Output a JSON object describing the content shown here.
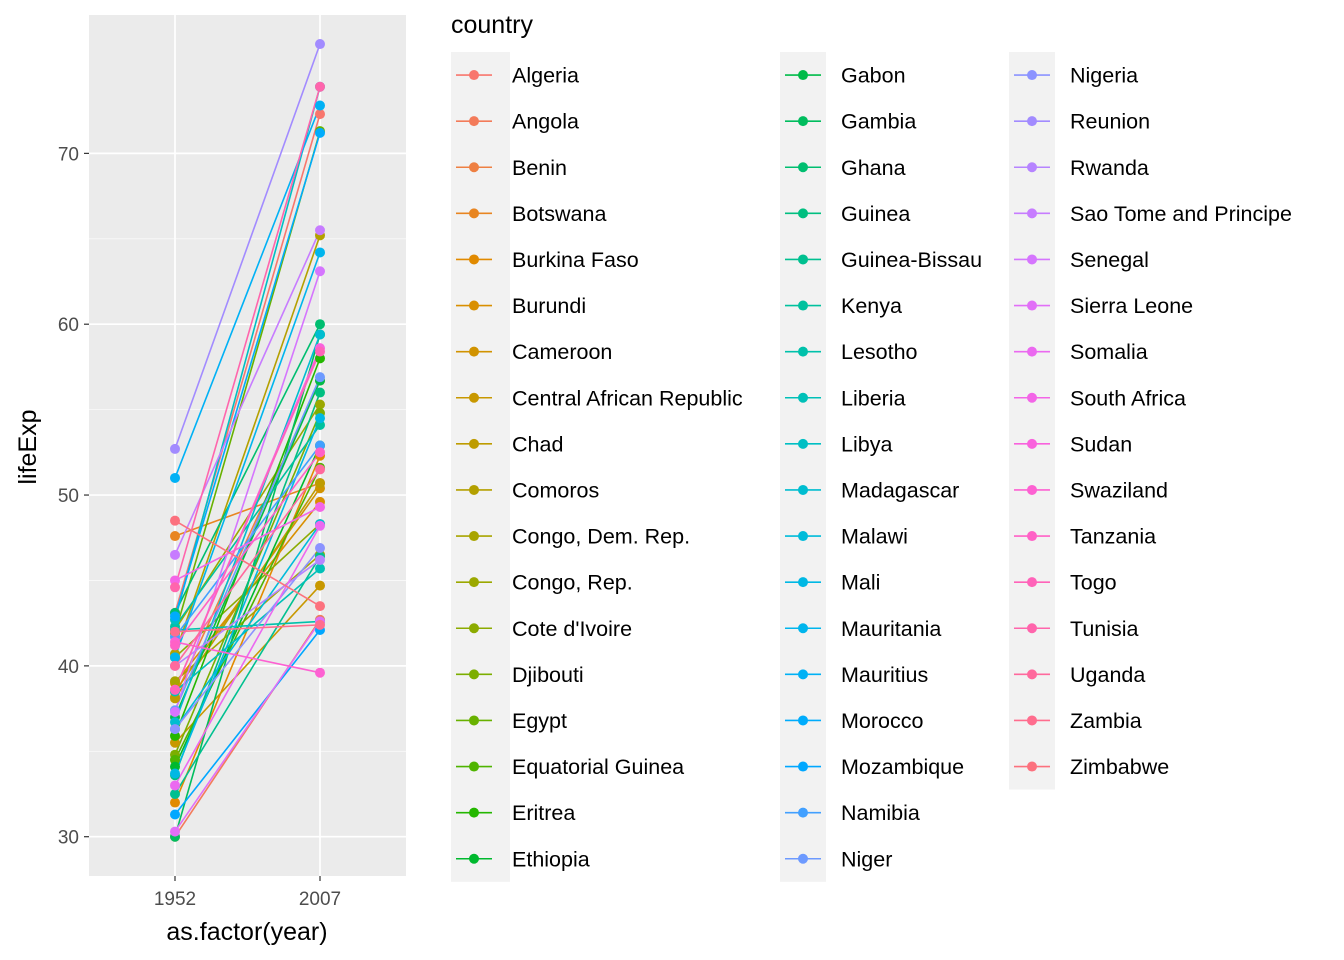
{
  "chart_data": {
    "type": "line",
    "xlabel": "as.factor(year)",
    "ylabel": "lifeExp",
    "categories": [
      "1952",
      "2007"
    ],
    "ylim": [
      27.7,
      78.1
    ],
    "yticks": [
      30,
      40,
      50,
      60,
      70
    ],
    "grid": true,
    "legend": {
      "title": "country",
      "placement": "right",
      "columns": 3
    },
    "series": [
      {
        "name": "Algeria",
        "values": [
          43.1,
          72.3
        ]
      },
      {
        "name": "Angola",
        "values": [
          30.0,
          42.7
        ]
      },
      {
        "name": "Benin",
        "values": [
          38.2,
          56.7
        ]
      },
      {
        "name": "Botswana",
        "values": [
          47.6,
          50.7
        ]
      },
      {
        "name": "Burkina Faso",
        "values": [
          32.0,
          52.3
        ]
      },
      {
        "name": "Burundi",
        "values": [
          39.0,
          49.6
        ]
      },
      {
        "name": "Cameroon",
        "values": [
          38.5,
          50.4
        ]
      },
      {
        "name": "Central African Republic",
        "values": [
          35.5,
          44.7
        ]
      },
      {
        "name": "Chad",
        "values": [
          38.1,
          50.7
        ]
      },
      {
        "name": "Comoros",
        "values": [
          40.7,
          65.2
        ]
      },
      {
        "name": "Congo, Dem. Rep.",
        "values": [
          39.1,
          46.5
        ]
      },
      {
        "name": "Congo, Rep.",
        "values": [
          42.1,
          55.3
        ]
      },
      {
        "name": "Cote d'Ivoire",
        "values": [
          40.5,
          48.3
        ]
      },
      {
        "name": "Djibouti",
        "values": [
          34.8,
          54.8
        ]
      },
      {
        "name": "Egypt",
        "values": [
          41.9,
          71.3
        ]
      },
      {
        "name": "Equatorial Guinea",
        "values": [
          34.5,
          51.6
        ]
      },
      {
        "name": "Eritrea",
        "values": [
          35.9,
          58.0
        ]
      },
      {
        "name": "Ethiopia",
        "values": [
          34.1,
          52.9
        ]
      },
      {
        "name": "Gabon",
        "values": [
          37.0,
          56.7
        ]
      },
      {
        "name": "Gambia",
        "values": [
          30.0,
          59.4
        ]
      },
      {
        "name": "Ghana",
        "values": [
          43.1,
          60.0
        ]
      },
      {
        "name": "Guinea",
        "values": [
          33.6,
          56.0
        ]
      },
      {
        "name": "Guinea-Bissau",
        "values": [
          32.5,
          46.4
        ]
      },
      {
        "name": "Kenya",
        "values": [
          42.3,
          54.1
        ]
      },
      {
        "name": "Lesotho",
        "values": [
          42.1,
          42.6
        ]
      },
      {
        "name": "Liberia",
        "values": [
          38.5,
          45.7
        ]
      },
      {
        "name": "Libya",
        "values": [
          42.7,
          73.9
        ]
      },
      {
        "name": "Madagascar",
        "values": [
          36.7,
          59.4
        ]
      },
      {
        "name": "Malawi",
        "values": [
          36.3,
          48.3
        ]
      },
      {
        "name": "Mali",
        "values": [
          33.7,
          54.5
        ]
      },
      {
        "name": "Mauritania",
        "values": [
          40.5,
          64.2
        ]
      },
      {
        "name": "Mauritius",
        "values": [
          51.0,
          72.8
        ]
      },
      {
        "name": "Morocco",
        "values": [
          42.9,
          71.2
        ]
      },
      {
        "name": "Mozambique",
        "values": [
          31.3,
          42.1
        ]
      },
      {
        "name": "Namibia",
        "values": [
          41.7,
          52.9
        ]
      },
      {
        "name": "Niger",
        "values": [
          37.4,
          56.9
        ]
      },
      {
        "name": "Nigeria",
        "values": [
          36.3,
          46.9
        ]
      },
      {
        "name": "Reunion",
        "values": [
          52.7,
          76.4
        ]
      },
      {
        "name": "Rwanda",
        "values": [
          40.0,
          46.2
        ]
      },
      {
        "name": "Sao Tome and Principe",
        "values": [
          46.5,
          65.5
        ]
      },
      {
        "name": "Senegal",
        "values": [
          37.3,
          63.1
        ]
      },
      {
        "name": "Sierra Leone",
        "values": [
          30.3,
          42.6
        ]
      },
      {
        "name": "Somalia",
        "values": [
          33.0,
          48.2
        ]
      },
      {
        "name": "South Africa",
        "values": [
          45.0,
          49.3
        ]
      },
      {
        "name": "Sudan",
        "values": [
          38.6,
          58.6
        ]
      },
      {
        "name": "Swaziland",
        "values": [
          41.4,
          39.6
        ]
      },
      {
        "name": "Tanzania",
        "values": [
          41.2,
          52.5
        ]
      },
      {
        "name": "Togo",
        "values": [
          38.6,
          58.4
        ]
      },
      {
        "name": "Tunisia",
        "values": [
          44.6,
          73.9
        ]
      },
      {
        "name": "Uganda",
        "values": [
          40.0,
          51.5
        ]
      },
      {
        "name": "Zambia",
        "values": [
          42.0,
          42.4
        ]
      },
      {
        "name": "Zimbabwe",
        "values": [
          48.5,
          43.5
        ]
      }
    ]
  }
}
